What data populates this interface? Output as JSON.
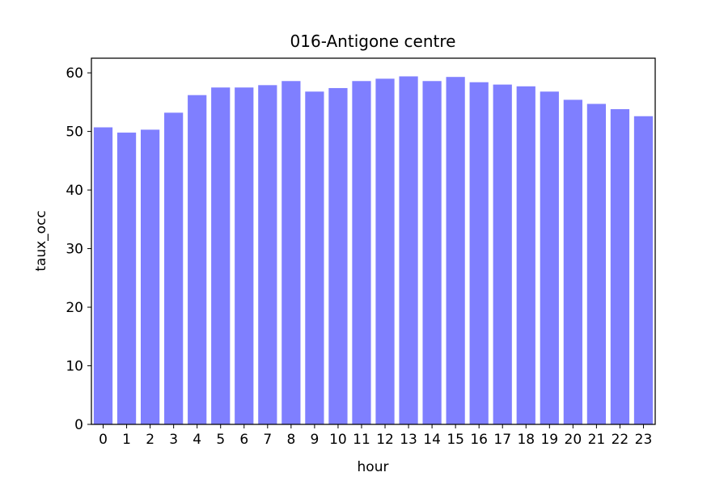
{
  "chart_data": {
    "type": "bar",
    "title": "016-Antigone centre",
    "xlabel": "hour",
    "ylabel": "taux_occ",
    "categories": [
      "0",
      "1",
      "2",
      "3",
      "4",
      "5",
      "6",
      "7",
      "8",
      "9",
      "10",
      "11",
      "12",
      "13",
      "14",
      "15",
      "16",
      "17",
      "18",
      "19",
      "20",
      "21",
      "22",
      "23"
    ],
    "values": [
      50.7,
      49.8,
      50.3,
      53.2,
      56.2,
      57.5,
      57.5,
      57.9,
      58.6,
      56.8,
      57.4,
      58.6,
      59.0,
      59.4,
      58.6,
      59.3,
      58.4,
      58.0,
      57.7,
      56.8,
      55.4,
      54.7,
      53.8,
      52.6
    ],
    "ylim": [
      0,
      62.5
    ],
    "yticks": [
      0,
      10,
      20,
      30,
      40,
      50,
      60
    ],
    "bar_color": "#7f7fff",
    "grid": false,
    "legend": "none"
  }
}
